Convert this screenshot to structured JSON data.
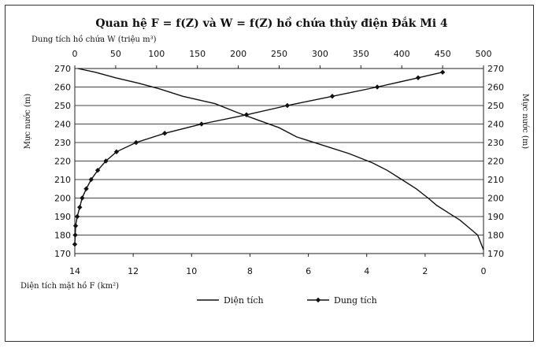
{
  "chart_data": {
    "type": "line",
    "title": "Quan hệ F = f(Z) và W = f(Z) hồ chứa thủy điện Đắk Mi 4",
    "top_axis_label": "Dung tích hồ chứa W (triệu m³)",
    "bottom_axis_label": "Diện tích mặt hồ F (km²)",
    "left_axis_label": "Mực nước (m)",
    "right_axis_label": "Mực nước (m)",
    "top_ticks": [
      "0",
      "50",
      "100",
      "150",
      "200",
      "250",
      "300",
      "350",
      "400",
      "450",
      "500"
    ],
    "top_range": [
      0,
      500
    ],
    "bottom_ticks": [
      "14",
      "12",
      "10",
      "8",
      "6",
      "4",
      "2",
      "0"
    ],
    "bottom_range": [
      14,
      0
    ],
    "y_ticks": [
      "170",
      "180",
      "190",
      "200",
      "210",
      "220",
      "230",
      "240",
      "250",
      "260",
      "270"
    ],
    "y_range": [
      170,
      270
    ],
    "grid": true,
    "legend_position": "bottom",
    "series": [
      {
        "name": "Diện tích",
        "axis": "bottom",
        "marker": "none",
        "points": [
          [
            0.0,
            172
          ],
          [
            0.1,
            176
          ],
          [
            0.2,
            180
          ],
          [
            0.5,
            184
          ],
          [
            0.8,
            188
          ],
          [
            1.2,
            192
          ],
          [
            1.6,
            196
          ],
          [
            1.9,
            200
          ],
          [
            2.3,
            205
          ],
          [
            2.8,
            210
          ],
          [
            3.3,
            215
          ],
          [
            3.8,
            219
          ],
          [
            4.6,
            224
          ],
          [
            5.6,
            229
          ],
          [
            6.4,
            233
          ],
          [
            7.0,
            238
          ],
          [
            7.7,
            242
          ],
          [
            8.4,
            246
          ],
          [
            9.2,
            251
          ],
          [
            10.3,
            255
          ],
          [
            11.1,
            259
          ],
          [
            11.8,
            262
          ],
          [
            12.6,
            265
          ],
          [
            13.3,
            268
          ],
          [
            13.9,
            270
          ]
        ]
      },
      {
        "name": "Dung tích",
        "axis": "top",
        "marker": "diamond",
        "points": [
          [
            0,
            175
          ],
          [
            0.5,
            180
          ],
          [
            1,
            185
          ],
          [
            3,
            190
          ],
          [
            6,
            195
          ],
          [
            9,
            200
          ],
          [
            14,
            205
          ],
          [
            20,
            210
          ],
          [
            28,
            215
          ],
          [
            38,
            220
          ],
          [
            51,
            225
          ],
          [
            75,
            230
          ],
          [
            110,
            235
          ],
          [
            155,
            240
          ],
          [
            210,
            245
          ],
          [
            260,
            250
          ],
          [
            315,
            255
          ],
          [
            370,
            260
          ],
          [
            420,
            265
          ],
          [
            450,
            268
          ]
        ]
      }
    ]
  }
}
